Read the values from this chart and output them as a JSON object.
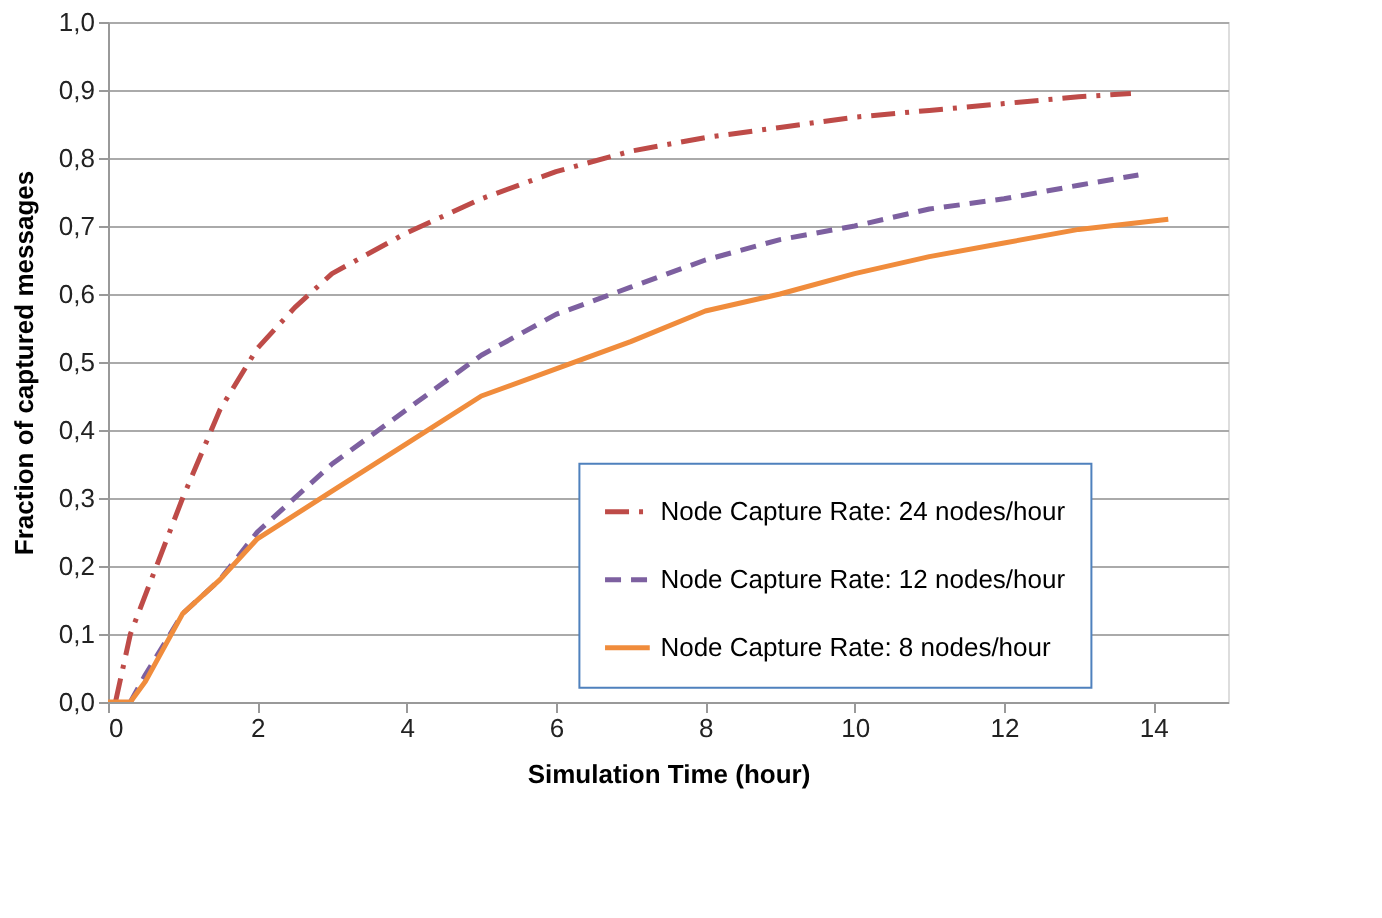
{
  "chart_data": {
    "type": "line",
    "xlabel": "Simulation Time (hour)",
    "ylabel": "Fraction of captured messages",
    "xlim": [
      0,
      15
    ],
    "xticks": [
      0,
      2,
      4,
      6,
      8,
      10,
      12,
      14
    ],
    "ylim": [
      0,
      1.0
    ],
    "yticks": [
      {
        "value": 0,
        "label": "0,0"
      },
      {
        "value": 0.1,
        "label": "0,1"
      },
      {
        "value": 0.2,
        "label": "0,2"
      },
      {
        "value": 0.3,
        "label": "0,3"
      },
      {
        "value": 0.4,
        "label": "0,4"
      },
      {
        "value": 0.5,
        "label": "0,5"
      },
      {
        "value": 0.6,
        "label": "0,6"
      },
      {
        "value": 0.7,
        "label": "0,7"
      },
      {
        "value": 0.8,
        "label": "0,8"
      },
      {
        "value": 0.9,
        "label": "0,9"
      },
      {
        "value": 1.0,
        "label": "1,0"
      }
    ],
    "grid": "y",
    "legend": "right",
    "series": [
      {
        "name": "Node Capture Rate: 24 nodes/hour",
        "color": "#be4b48",
        "line_style": "dashdot",
        "x": [
          0.1,
          0.3,
          1,
          1.5,
          2,
          2.5,
          3,
          4,
          5,
          6,
          7,
          8,
          9,
          10,
          11,
          12,
          13,
          13.7
        ],
        "values": [
          0,
          0.1,
          0.3,
          0.43,
          0.52,
          0.58,
          0.63,
          0.69,
          0.74,
          0.78,
          0.81,
          0.83,
          0.845,
          0.86,
          0.87,
          0.88,
          0.89,
          0.895
        ]
      },
      {
        "name": "Node Capture Rate: 12 nodes/hour",
        "color": "#7d60a0",
        "line_style": "dashed",
        "x": [
          0.3,
          0.5,
          1,
          1.5,
          2,
          3,
          4,
          5,
          6,
          7,
          8,
          9,
          10,
          11,
          12,
          13,
          13.8
        ],
        "values": [
          0,
          0.04,
          0.13,
          0.18,
          0.25,
          0.35,
          0.43,
          0.51,
          0.57,
          0.61,
          0.65,
          0.68,
          0.7,
          0.725,
          0.74,
          0.76,
          0.775
        ]
      },
      {
        "name": "Node Capture Rate: 8 nodes/hour",
        "color": "#f08c3c",
        "line_style": "solid",
        "x": [
          0,
          0.3,
          0.5,
          1,
          1.5,
          2,
          3,
          4,
          5,
          6,
          7,
          8,
          9,
          10,
          11,
          12,
          13,
          14.2
        ],
        "values": [
          0,
          0,
          0.03,
          0.13,
          0.18,
          0.24,
          0.31,
          0.38,
          0.45,
          0.49,
          0.53,
          0.575,
          0.6,
          0.63,
          0.655,
          0.675,
          0.695,
          0.71
        ]
      }
    ]
  }
}
